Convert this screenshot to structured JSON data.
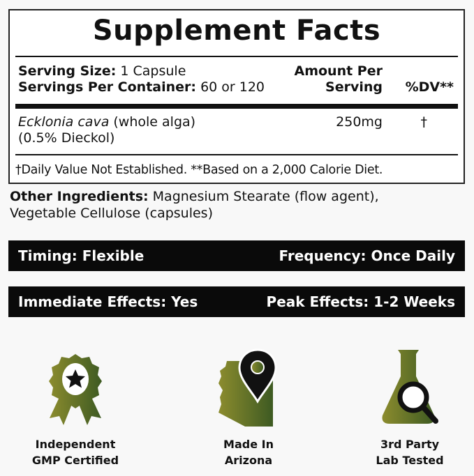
{
  "facts": {
    "title": "Supplement Facts",
    "serving_size_label": "Serving Size:",
    "serving_size_value": "1 Capsule",
    "servings_per_container_label": "Servings Per Container:",
    "servings_per_container_value": "60 or 120",
    "amount_header_1": "Amount Per",
    "amount_header_2": "Serving",
    "dv_header": "%DV**",
    "ingredient_name": "Ecklonia cava",
    "ingredient_desc": "(whole alga)",
    "ingredient_std": "(0.5% Dieckol)",
    "ingredient_amount": "250mg",
    "ingredient_dv": "†",
    "footnote": "†Daily Value Not Established. **Based on a 2,000 Calorie Diet."
  },
  "other_ingredients": {
    "label": "Other Ingredients:",
    "line1": "Magnesium Stearate (flow agent),",
    "line2": "Vegetable Cellulose (capsules)"
  },
  "bars": [
    {
      "left": "Timing: Flexible",
      "right": "Frequency: Once Daily"
    },
    {
      "left": "Immediate Effects: Yes",
      "right": "Peak Effects: 1-2 Weeks"
    }
  ],
  "badges": [
    {
      "icon": "award-ribbon-star-icon",
      "line1": "Independent",
      "line2": "GMP Certified"
    },
    {
      "icon": "arizona-map-pin-icon",
      "line1": "Made In",
      "line2": "Arizona"
    },
    {
      "icon": "flask-magnifier-icon",
      "line1": "3rd Party",
      "line2": "Lab Tested"
    }
  ],
  "colors": {
    "icon_gradient_start": "#8c8c2e",
    "icon_gradient_end": "#3d5a22",
    "bar": "#0a0a0a"
  }
}
